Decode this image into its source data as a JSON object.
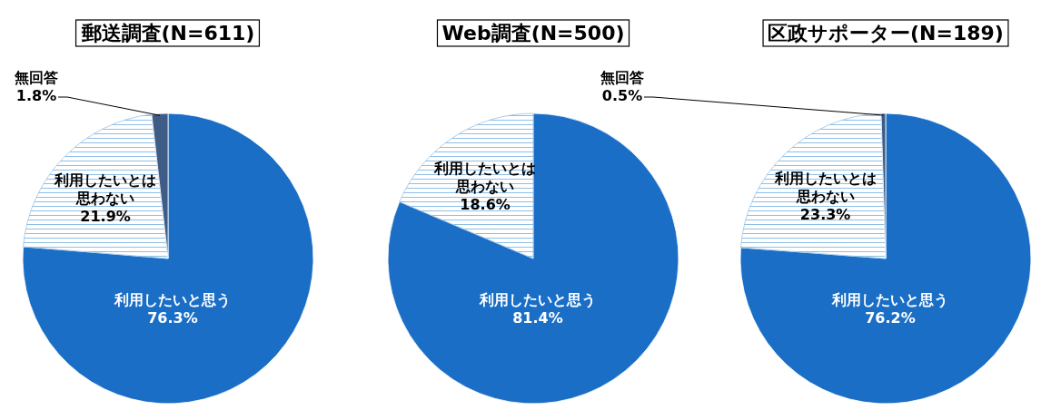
{
  "chart_data": [
    {
      "type": "pie",
      "title": "郵送調査(N=611)",
      "categories": [
        "利用したいと思う",
        "利用したいとは思わない",
        "無回答"
      ],
      "values": [
        76.3,
        21.9,
        1.8
      ],
      "value_labels": [
        "76.3%",
        "21.9%",
        "1.8%"
      ],
      "colors": [
        "#1a6ec6",
        "#ffffff",
        "#3f5c86"
      ]
    },
    {
      "type": "pie",
      "title": "Web調査(N=500)",
      "categories": [
        "利用したいと思う",
        "利用したいとは思わない"
      ],
      "values": [
        81.4,
        18.6
      ],
      "value_labels": [
        "81.4%",
        "18.6%"
      ],
      "colors": [
        "#1a6ec6",
        "#ffffff"
      ]
    },
    {
      "type": "pie",
      "title": "区政サポーター(N=189)",
      "categories": [
        "利用したいと思う",
        "利用したいとは思わない",
        "無回答"
      ],
      "values": [
        76.2,
        23.3,
        0.5
      ],
      "value_labels": [
        "76.2%",
        "23.3%",
        "0.5%"
      ],
      "colors": [
        "#1a6ec6",
        "#ffffff",
        "#3f5c86"
      ]
    }
  ]
}
